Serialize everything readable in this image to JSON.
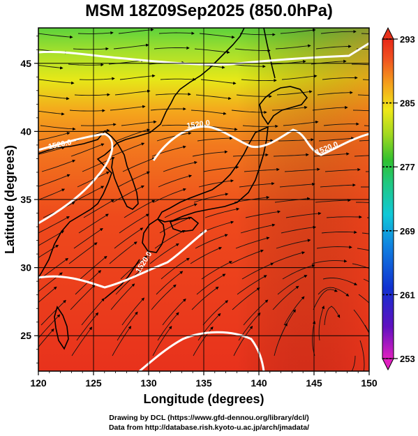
{
  "title": "MSM 18Z09Sep2025 (850.0hPa)",
  "x_axis": {
    "label": "Longitude (degrees)",
    "ticks": [
      120,
      125,
      130,
      135,
      140,
      145,
      150
    ],
    "range": [
      120,
      150
    ]
  },
  "y_axis": {
    "label": "Latitude  (degrees)",
    "ticks": [
      25,
      30,
      35,
      40,
      45
    ],
    "range": [
      22.4,
      47.6
    ]
  },
  "colorbar": {
    "ticks": [
      253,
      261,
      269,
      277,
      285,
      293
    ],
    "range": [
      253,
      293
    ],
    "unit": ""
  },
  "contour_labels": [
    "1520.0",
    "1520.0",
    "1520.0",
    "1520.0"
  ],
  "credits": {
    "line1": "Drawing by DCL (https://www.gfd-dennou.org/library/dcl/)",
    "line2": "Data from http://database.rish.kyoto-u.ac.jp/arch/jmadata/"
  }
}
